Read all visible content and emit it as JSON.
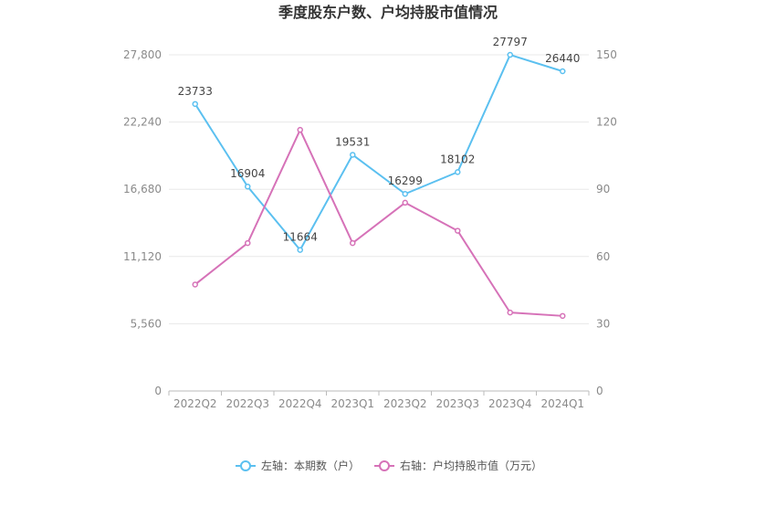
{
  "chart_data": {
    "type": "line",
    "title": "季度股东户数、户均持股市值情况",
    "categories": [
      "2022Q2",
      "2022Q3",
      "2022Q4",
      "2023Q1",
      "2023Q2",
      "2023Q3",
      "2023Q4",
      "2024Q1"
    ],
    "left_axis": {
      "ticks": [
        "0",
        "5,560",
        "11,120",
        "16,680",
        "22,240",
        "27,800"
      ],
      "ylim": [
        0,
        27800
      ]
    },
    "right_axis": {
      "ticks": [
        "0",
        "30",
        "60",
        "90",
        "120",
        "150"
      ],
      "ylim": [
        0,
        150
      ]
    },
    "grid": true,
    "legend_position": "bottom",
    "series": [
      {
        "name": "左轴：本期数（户）",
        "axis": "left",
        "color": "#5bc0f0",
        "values": [
          23733,
          16904,
          11664,
          19531,
          16299,
          18102,
          27797,
          26440
        ],
        "labels": [
          "23733",
          "16904",
          "11664",
          "19531",
          "16299",
          "18102",
          "27797",
          "26440"
        ]
      },
      {
        "name": "右轴：户均持股市值（万元）",
        "axis": "right",
        "color": "#d672b8",
        "values": [
          47.5,
          66.0,
          116.5,
          66.0,
          84.0,
          71.5,
          35.0,
          33.5
        ]
      }
    ]
  }
}
